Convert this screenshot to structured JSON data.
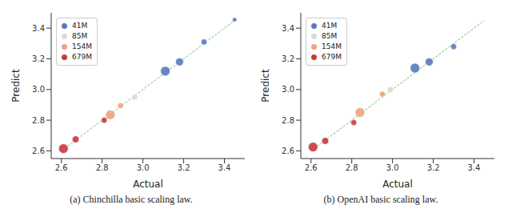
{
  "chart_data": [
    {
      "type": "scatter",
      "title": "(a) Chinchilla basic scaling law.",
      "x_label": "Actual",
      "y_label": "Predict",
      "xlim": [
        2.55,
        3.5
      ],
      "ylim": [
        2.55,
        3.5
      ],
      "xticks": [
        2.6,
        2.8,
        {
          "value": 3.0,
          "label": "3.0"
        },
        3.2,
        3.4
      ],
      "yticks": [
        2.6,
        2.8,
        {
          "value": 3.0,
          "label": "3.0"
        },
        3.2,
        3.4
      ],
      "legend": "upper left",
      "grid": false,
      "reference_line": {
        "x": [
          2.6,
          3.45
        ],
        "y": [
          2.6,
          3.45
        ],
        "color": "#66c266",
        "line_style": "dashed"
      },
      "series": [
        {
          "name": "41M",
          "color": "#5a78c0",
          "x": [
            3.11,
            3.18,
            3.3,
            3.45
          ],
          "y": [
            3.12,
            3.18,
            3.31,
            3.455
          ],
          "sizes": [
            3,
            2,
            1,
            0.5
          ]
        },
        {
          "name": "85M",
          "color": "#d9d9d9",
          "x": [
            2.96
          ],
          "y": [
            2.95
          ],
          "sizes": [
            1
          ]
        },
        {
          "name": "154M",
          "color": "#eea47c",
          "x": [
            2.84,
            2.89
          ],
          "y": [
            2.835,
            2.895
          ],
          "sizes": [
            3,
            1
          ]
        },
        {
          "name": "679M",
          "color": "#c8383c",
          "x": [
            2.61,
            2.67,
            2.81
          ],
          "y": [
            2.615,
            2.675,
            2.8
          ],
          "sizes": [
            3,
            1.5,
            1
          ]
        }
      ]
    },
    {
      "type": "scatter",
      "title": "(b) OpenAI basic scaling law.",
      "x_label": "Actual",
      "y_label": "Predict",
      "xlim": [
        2.55,
        3.5
      ],
      "ylim": [
        2.55,
        3.5
      ],
      "xticks": [
        2.6,
        2.8,
        {
          "value": 3.0,
          "label": "3.0"
        },
        3.2,
        3.4
      ],
      "yticks": [
        2.6,
        2.8,
        {
          "value": 3.0,
          "label": "3.0"
        },
        3.2,
        3.4
      ],
      "legend": "upper left",
      "grid": false,
      "reference_line": {
        "x": [
          2.6,
          3.45
        ],
        "y": [
          2.6,
          3.45
        ],
        "color": "#66c266",
        "line_style": "dashed"
      },
      "series": [
        {
          "name": "41M",
          "color": "#5a78c0",
          "x": [
            3.11,
            3.18,
            3.3
          ],
          "y": [
            3.14,
            3.18,
            3.28
          ],
          "sizes": [
            3,
            2,
            1
          ]
        },
        {
          "name": "85M",
          "color": "#d9d9d9",
          "x": [
            2.99
          ],
          "y": [
            3.0
          ],
          "sizes": [
            1
          ]
        },
        {
          "name": "154M",
          "color": "#eea47c",
          "x": [
            2.84,
            2.95
          ],
          "y": [
            2.85,
            2.97
          ],
          "sizes": [
            3,
            1
          ]
        },
        {
          "name": "679M",
          "color": "#c8383c",
          "x": [
            2.61,
            2.67,
            2.81
          ],
          "y": [
            2.625,
            2.665,
            2.785
          ],
          "sizes": [
            3,
            1.5,
            1
          ]
        }
      ]
    }
  ]
}
